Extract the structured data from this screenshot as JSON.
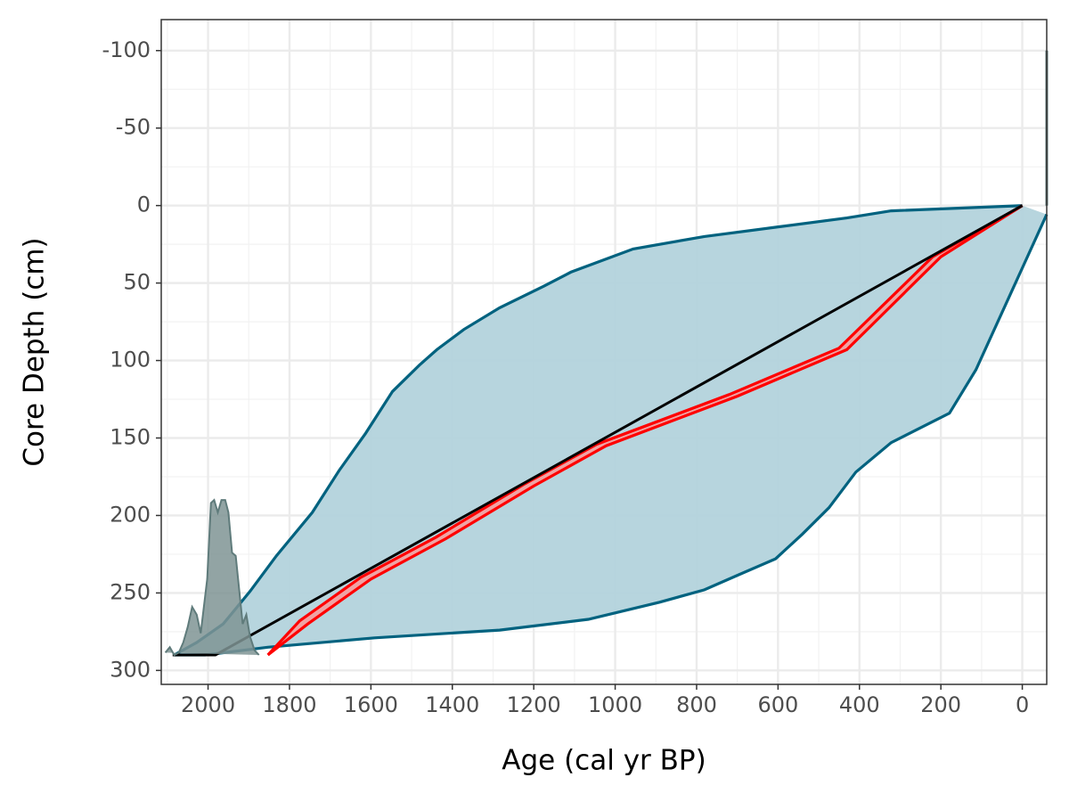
{
  "chart_data": {
    "type": "line",
    "x_label": "Age (cal yr BP)",
    "y_label": "Core Depth (cm)",
    "xlim": [
      2115,
      -60
    ],
    "ylim": [
      -120,
      309
    ],
    "y_reversed": true,
    "xticks": [
      2000,
      1800,
      1600,
      1400,
      1200,
      1000,
      800,
      600,
      400,
      200,
      0
    ],
    "yticks": [
      -100,
      -50,
      0,
      50,
      100,
      150,
      200,
      250,
      300
    ],
    "grid": true,
    "series": [
      {
        "kind": "band",
        "color": "#00627f",
        "fill": "#b3d3dc",
        "older": {
          "x": [
            0,
            322,
            431,
            606,
            781,
            956,
            1109,
            1175,
            1284,
            1372,
            1438,
            1481,
            1547,
            1613,
            1678,
            1744,
            1832,
            1897,
            1963,
            2028,
            2083
          ],
          "y": [
            0,
            3.4,
            8,
            14,
            20,
            28,
            43,
            52,
            66,
            80,
            93,
            103,
            120,
            147,
            171,
            198,
            226,
            249,
            270,
            282,
            290
          ]
        },
        "younger": {
          "x": [
            -60,
            114,
            179,
            322,
            409,
            475,
            540,
            606,
            694,
            781,
            891,
            1066,
            1284,
            1591,
            1853,
            2007,
            2083
          ],
          "y": [
            5.7,
            106,
            134,
            153,
            172,
            195,
            212,
            228,
            238,
            248,
            256,
            267,
            274,
            279,
            285,
            290,
            290
          ]
        }
      },
      {
        "kind": "band",
        "color": "#ff0000",
        "fill": "#f2a0a0",
        "older": {
          "x": [
            0,
            220,
            450,
            720,
            1045,
            1225,
            1440,
            1625,
            1775,
            1853
          ],
          "y": [
            0,
            33,
            92,
            122,
            154,
            180,
            214,
            240,
            268,
            290
          ]
        },
        "younger": {
          "x": [
            0,
            200,
            431,
            700,
            1022,
            1200,
            1416,
            1600,
            1755,
            1853
          ],
          "y": [
            0,
            33,
            93,
            123,
            155,
            181,
            215,
            241,
            270,
            290
          ]
        }
      },
      {
        "kind": "line",
        "color": "#000000",
        "x": [
          0,
          1982,
          2087
        ],
        "y": [
          0,
          290,
          290
        ]
      },
      {
        "kind": "density",
        "color": "#5f7b7b",
        "fill": "#7f9494",
        "x": [
          2105,
          2094,
          2083,
          2072,
          2061,
          2050,
          2039,
          2028,
          2018,
          2002,
          1993,
          1985,
          1976,
          1967,
          1958,
          1950,
          1941,
          1932,
          1923,
          1915,
          1906,
          1897,
          1886,
          1875
        ],
        "y": [
          288.5,
          285,
          290,
          288.5,
          282,
          272,
          259,
          264,
          276,
          241,
          192,
          190,
          198,
          190,
          190,
          198,
          224,
          226,
          249,
          270,
          264,
          278,
          287,
          290
        ]
      },
      {
        "kind": "line",
        "color": "#5f7b7b",
        "x": [
          -60,
          -60
        ],
        "y": [
          -100,
          0
        ]
      }
    ]
  }
}
